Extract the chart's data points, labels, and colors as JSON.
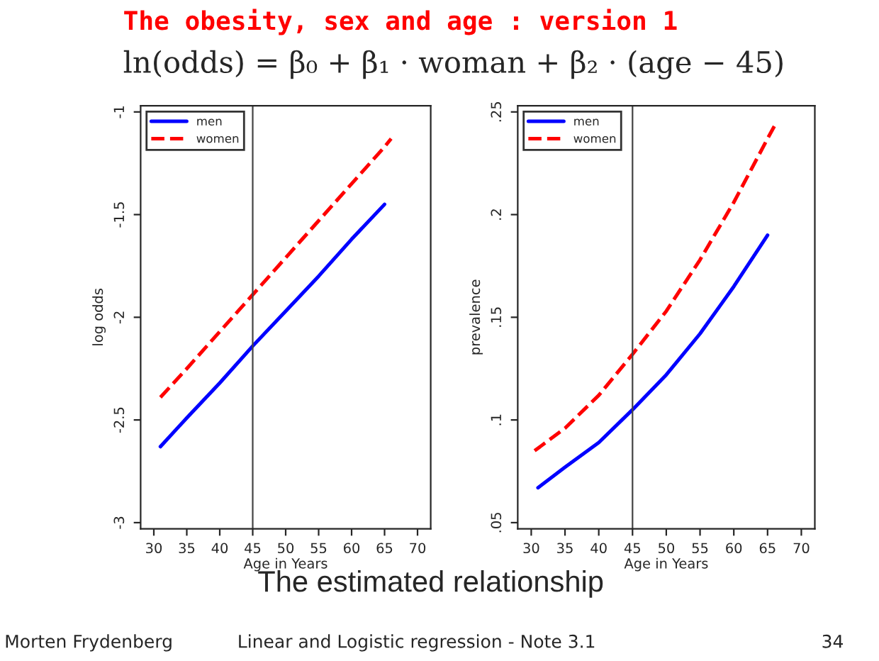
{
  "chart_data": [
    {
      "type": "line",
      "title": "The obesity, sex and age : version 1",
      "subtitle": "ln(odds) = β₀ + β₁ · woman + β₂ · (age − 45)",
      "xlabel": "Age in Years",
      "ylabel": "log odds",
      "xlim": [
        28,
        72
      ],
      "xticks": [
        30,
        35,
        40,
        45,
        50,
        55,
        60,
        65,
        70
      ],
      "ylim": [
        -3.03,
        -0.97
      ],
      "yticks": [
        -3,
        -2.5,
        -2,
        -1.5,
        -1
      ],
      "series": [
        {
          "name": "men",
          "color": "#0000ff",
          "line_style": "solid",
          "x": [
            31,
            35,
            40,
            45,
            50,
            55,
            60,
            65
          ],
          "values": [
            -2.63,
            -2.49,
            -2.32,
            -2.14,
            -1.97,
            -1.8,
            -1.62,
            -1.45
          ]
        },
        {
          "name": "women",
          "color": "#ff0000",
          "line_style": "dashed",
          "x": [
            31,
            35,
            40,
            45,
            50,
            55,
            60,
            65,
            66
          ],
          "values": [
            -2.39,
            -2.25,
            -2.07,
            -1.89,
            -1.71,
            -1.53,
            -1.35,
            -1.17,
            -1.13
          ]
        }
      ],
      "ref_lines": [
        {
          "axis": "x",
          "value": 45,
          "color": "#444444"
        }
      ],
      "legend": "top left",
      "grid": false
    },
    {
      "type": "line",
      "xlabel": "Age in Years",
      "ylabel": "prevalence",
      "xlim": [
        28,
        72
      ],
      "xticks": [
        30,
        35,
        40,
        45,
        50,
        55,
        60,
        65,
        70
      ],
      "ylim": [
        0.047,
        0.253
      ],
      "yticks": [
        {
          "value": 0.05,
          "label": ".05"
        },
        {
          "value": 0.1,
          "label": ".1"
        },
        {
          "value": 0.15,
          "label": ".15"
        },
        {
          "value": 0.2,
          "label": ".2"
        },
        {
          "value": 0.25,
          "label": ".25"
        }
      ],
      "series": [
        {
          "name": "men",
          "color": "#0000ff",
          "line_style": "solid",
          "x": [
            31,
            35,
            40,
            45,
            50,
            55,
            60,
            65
          ],
          "values": [
            0.067,
            0.077,
            0.089,
            0.105,
            0.122,
            0.142,
            0.165,
            0.19
          ]
        },
        {
          "name": "women",
          "color": "#ff0000",
          "line_style": "dashed",
          "x": [
            30.5,
            35,
            40,
            45,
            50,
            55,
            60,
            65,
            66
          ],
          "values": [
            0.085,
            0.096,
            0.112,
            0.132,
            0.153,
            0.178,
            0.206,
            0.237,
            0.243
          ]
        }
      ],
      "ref_lines": [
        {
          "axis": "x",
          "value": 45,
          "color": "#444444"
        }
      ],
      "legend": "top left",
      "grid": false,
      "annotations": [
        "The estimated relationship",
        "Morten Frydenberg",
        "Linear and Logistic regression - Note 3.1",
        "34"
      ]
    }
  ]
}
